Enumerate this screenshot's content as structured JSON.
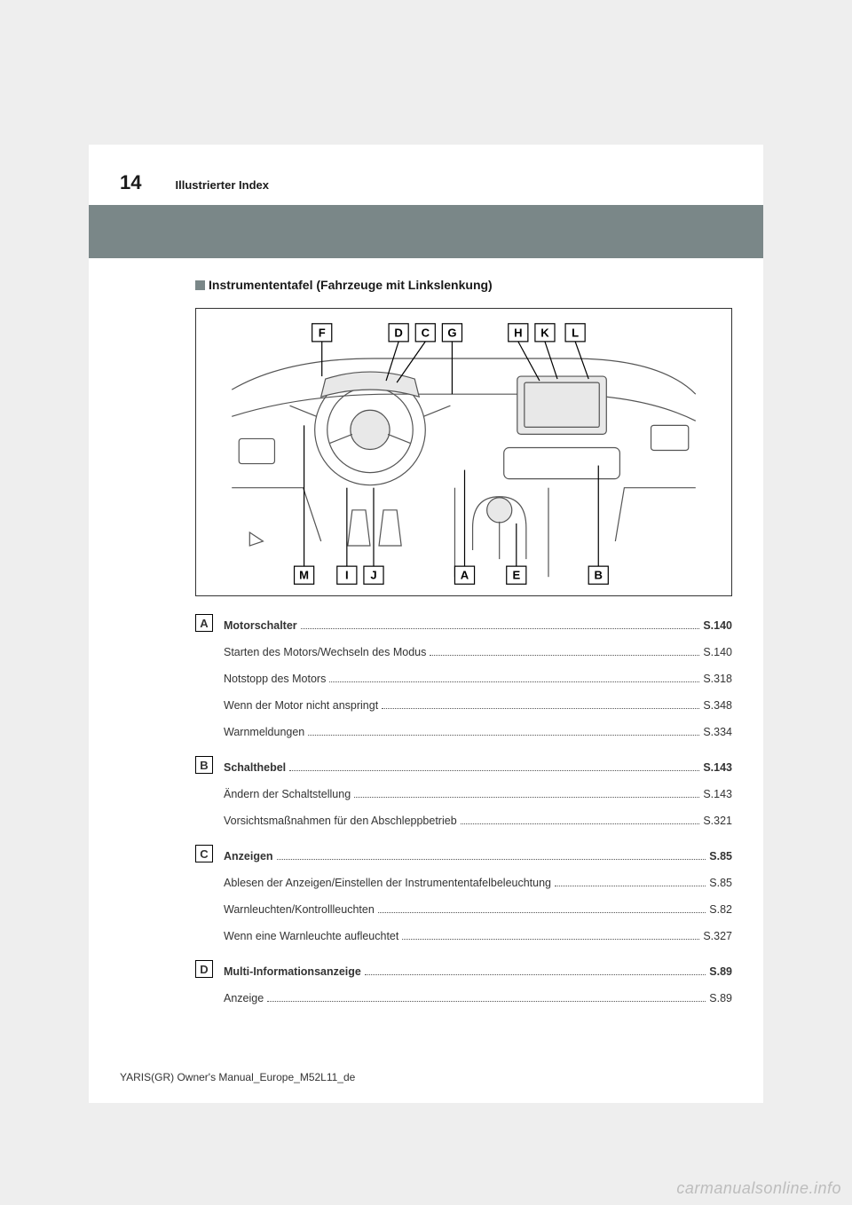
{
  "header": {
    "page_number": "14",
    "section": "Illustrierter Index"
  },
  "subtitle": "Instrumententafel (Fahrzeuge mit Linkslenkung)",
  "diagram": {
    "top_labels": [
      "F",
      "D",
      "C",
      "G",
      "H",
      "K",
      "L"
    ],
    "bottom_labels": [
      "M",
      "I",
      "J",
      "A",
      "E",
      "B"
    ]
  },
  "toc": [
    {
      "letter": "A",
      "items": [
        {
          "bold": true,
          "label": "Motorschalter",
          "page": "S.140"
        },
        {
          "bold": false,
          "label": "Starten des Motors/Wechseln des Modus",
          "page": "S.140"
        },
        {
          "bold": false,
          "label": "Notstopp des Motors",
          "page": "S.318"
        },
        {
          "bold": false,
          "label": "Wenn der Motor nicht anspringt",
          "page": "S.348"
        },
        {
          "bold": false,
          "label": "Warnmeldungen",
          "page": "S.334"
        }
      ]
    },
    {
      "letter": "B",
      "items": [
        {
          "bold": true,
          "label": "Schalthebel",
          "page": "S.143"
        },
        {
          "bold": false,
          "label": "Ändern der Schaltstellung",
          "page": "S.143"
        },
        {
          "bold": false,
          "label": "Vorsichtsmaßnahmen für den Abschleppbetrieb",
          "page": "S.321"
        }
      ]
    },
    {
      "letter": "C",
      "items": [
        {
          "bold": true,
          "label": "Anzeigen",
          "page": "S.85"
        },
        {
          "bold": false,
          "label": "Ablesen der Anzeigen/Einstellen der Instrumententafelbeleuchtung",
          "page": "S.85"
        },
        {
          "bold": false,
          "label": "Warnleuchten/Kontrollleuchten",
          "page": "S.82"
        },
        {
          "bold": false,
          "label": "Wenn eine Warnleuchte aufleuchtet",
          "page": "S.327"
        }
      ]
    },
    {
      "letter": "D",
      "items": [
        {
          "bold": true,
          "label": "Multi-Informationsanzeige",
          "page": "S.89"
        },
        {
          "bold": false,
          "label": "Anzeige",
          "page": "S.89"
        }
      ]
    }
  ],
  "footer": "YARIS(GR) Owner's Manual_Europe_M52L11_de",
  "watermark": "carmanualsonline.info"
}
